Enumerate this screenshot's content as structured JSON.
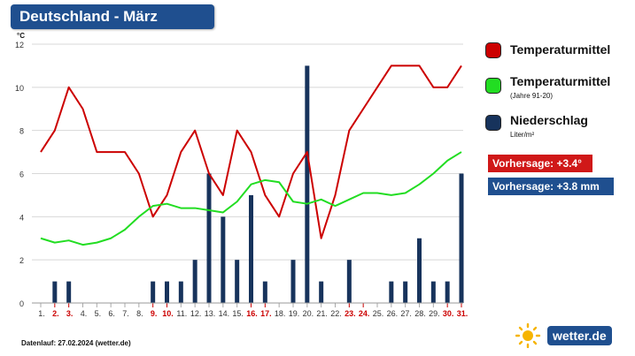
{
  "header": {
    "title": "Deutschland - März"
  },
  "legend": {
    "items": [
      {
        "label": "Temperaturmittel",
        "sub": "",
        "color": "#cc0000"
      },
      {
        "label": "Temperaturmittel",
        "sub": "(Jahre 91-20)",
        "color": "#22dd22"
      },
      {
        "label": "Niederschlag",
        "sub": "Liter/m²",
        "color": "#17335c"
      }
    ]
  },
  "forecast": {
    "temp": {
      "label": "Vorhersage: +3.4°",
      "color": "#d01818"
    },
    "precip": {
      "label": "Vorhersage: +3.8 mm",
      "color": "#1f4f8f"
    }
  },
  "footer": {
    "text": "Datenlauf: 27.02.2024 (wetter.de)"
  },
  "logo": {
    "text": "wetter.de"
  },
  "chart_data": {
    "type": "bar",
    "ylabel": "°C",
    "ylim": [
      0,
      12
    ],
    "yticks": [
      0,
      2,
      4,
      6,
      8,
      10,
      12
    ],
    "categories": [
      "1.",
      "2.",
      "3.",
      "4.",
      "5.",
      "6.",
      "7.",
      "8.",
      "9.",
      "10.",
      "11.",
      "12.",
      "13.",
      "14.",
      "15.",
      "16.",
      "17.",
      "18.",
      "19.",
      "20.",
      "21.",
      "22.",
      "23.",
      "24.",
      "25.",
      "26.",
      "27.",
      "28.",
      "29.",
      "30.",
      "31."
    ],
    "weekend_days": [
      2,
      3,
      9,
      10,
      16,
      17,
      23,
      24,
      30,
      31
    ],
    "grid": true,
    "series": [
      {
        "name": "Niederschlag",
        "type": "bar",
        "color": "#17335c",
        "values": [
          0,
          1,
          1,
          0,
          0,
          0,
          0,
          0,
          1,
          1,
          1,
          2,
          6,
          4,
          2,
          5,
          1,
          0,
          2,
          11,
          1,
          0,
          2,
          0,
          0,
          1,
          1,
          3,
          1,
          1,
          6
        ]
      },
      {
        "name": "Temperaturmittel",
        "type": "line",
        "color": "#cc0000",
        "values": [
          7,
          8,
          10,
          9,
          7,
          7,
          7,
          6,
          4,
          5,
          7,
          8,
          6,
          5,
          8,
          7,
          5,
          4,
          6,
          7,
          3,
          5,
          8,
          9,
          10,
          11,
          11,
          11,
          10,
          10,
          11
        ]
      },
      {
        "name": "Temperaturmittel (Jahre 91-20)",
        "type": "line",
        "color": "#22dd22",
        "values": [
          3,
          2.8,
          2.9,
          2.7,
          2.8,
          3,
          3.4,
          4,
          4.5,
          4.6,
          4.4,
          4.4,
          4.3,
          4.2,
          4.7,
          5.5,
          5.7,
          5.6,
          4.7,
          4.6,
          4.8,
          4.5,
          4.8,
          5.1,
          5.1,
          5,
          5.1,
          5.5,
          6,
          6.6,
          7
        ]
      }
    ]
  }
}
